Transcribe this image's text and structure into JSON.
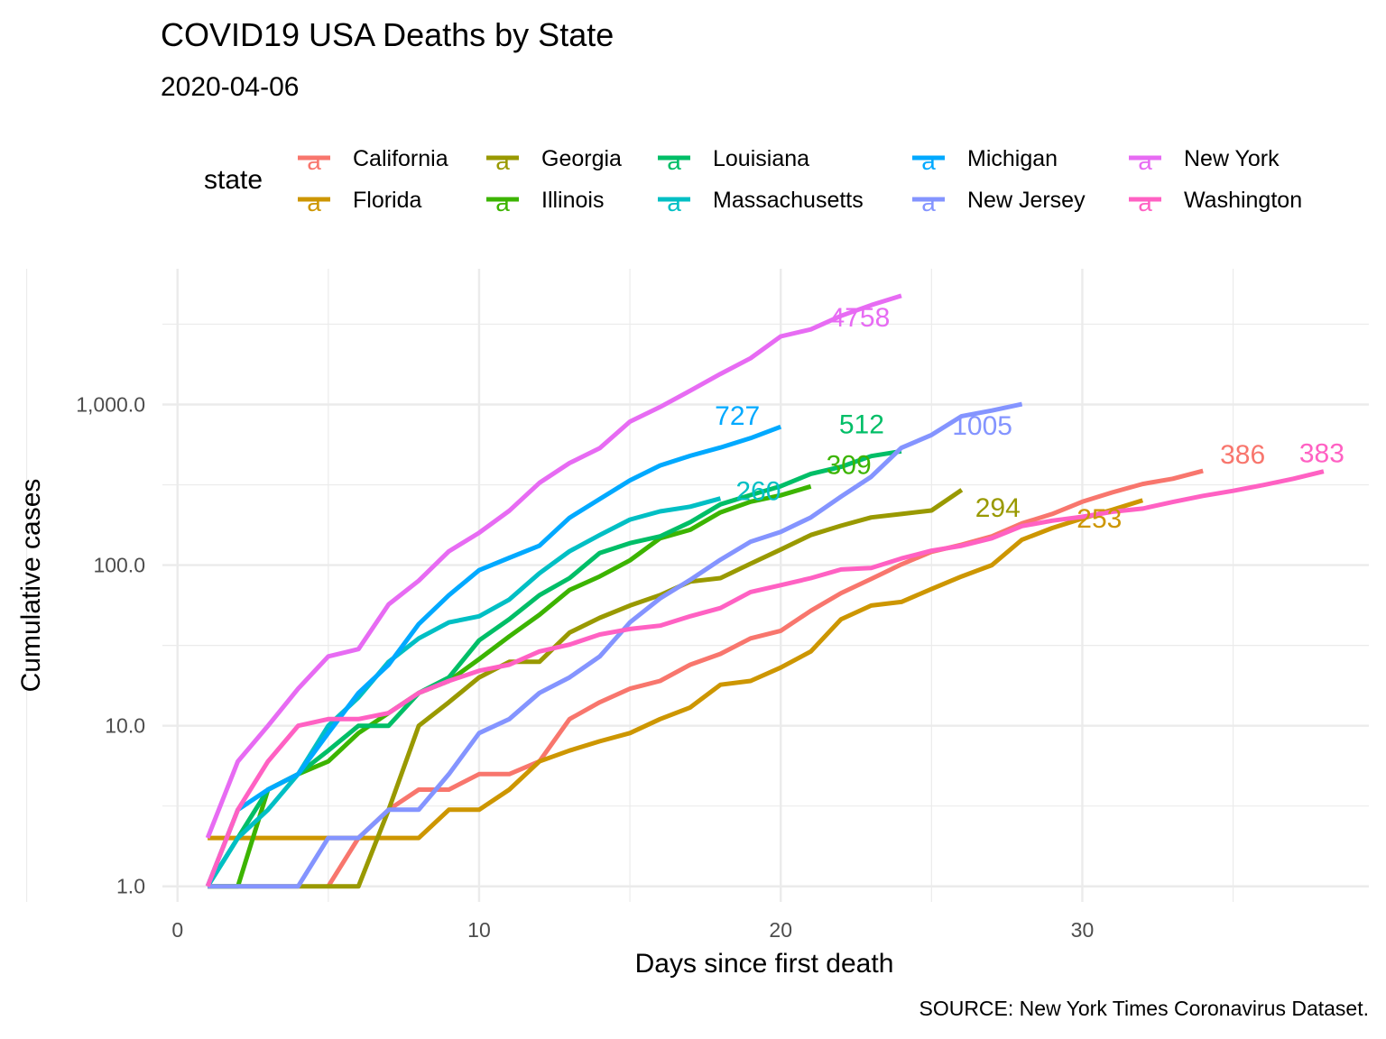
{
  "chart_data": {
    "type": "line",
    "title": "COVID19 USA Deaths by State",
    "subtitle": "2020-04-06",
    "xlabel": "Days since first death",
    "ylabel": "Cumulative cases",
    "caption": "SOURCE: New York Times Coronavirus Dataset.",
    "legend_title": "state",
    "legend_position": "top",
    "y_scale": "log10",
    "xlim": [
      -0.5,
      39.5
    ],
    "ylim": [
      0.8,
      7000
    ],
    "x_ticks": [
      0,
      10,
      20,
      30
    ],
    "x_tick_labels": [
      "0",
      "10",
      "20",
      "30"
    ],
    "y_ticks": [
      1,
      10,
      100,
      1000
    ],
    "y_tick_labels": [
      "1.0",
      "10.0",
      "100.0",
      "1,000.0"
    ],
    "grid": true,
    "series": [
      {
        "name": "California",
        "color": "#F8766D",
        "end_label": "386",
        "x": [
          5,
          6,
          7,
          8,
          9,
          10,
          11,
          12,
          13,
          14,
          15,
          16,
          17,
          18,
          19,
          20,
          21,
          22,
          23,
          24,
          25,
          26,
          27,
          28,
          29,
          30,
          31,
          32,
          33,
          34
        ],
        "y": [
          1,
          2,
          3,
          4,
          4,
          5,
          5,
          6,
          11,
          14,
          17,
          19,
          24,
          28,
          35,
          39,
          52,
          67,
          82,
          101,
          121,
          134,
          151,
          182,
          208,
          248,
          284,
          320,
          345,
          386
        ]
      },
      {
        "name": "Florida",
        "color": "#CD9600",
        "end_label": "253",
        "x": [
          1,
          2,
          3,
          4,
          5,
          6,
          7,
          8,
          9,
          10,
          11,
          12,
          13,
          14,
          15,
          16,
          17,
          18,
          19,
          20,
          21,
          22,
          23,
          24,
          25,
          26,
          27,
          28,
          29,
          30,
          31,
          32
        ],
        "y": [
          2,
          2,
          2,
          2,
          2,
          2,
          2,
          2,
          3,
          3,
          4,
          6,
          7,
          8,
          9,
          11,
          13,
          18,
          19,
          23,
          29,
          46,
          56,
          59,
          71,
          85,
          100,
          144,
          170,
          195,
          221,
          253
        ]
      },
      {
        "name": "Georgia",
        "color": "#999900",
        "end_label": "294",
        "x": [
          1,
          2,
          3,
          4,
          5,
          6,
          7,
          8,
          9,
          10,
          11,
          12,
          13,
          14,
          15,
          16,
          17,
          18,
          19,
          20,
          21,
          22,
          23,
          24,
          25,
          26
        ],
        "y": [
          1,
          1,
          1,
          1,
          1,
          1,
          3,
          10,
          14,
          20,
          25,
          25,
          38,
          47,
          56,
          65,
          79,
          83,
          102,
          125,
          154,
          176,
          198,
          208,
          219,
          294
        ]
      },
      {
        "name": "Illinois",
        "color": "#3CB400",
        "end_label": "309",
        "x": [
          1,
          2,
          3,
          4,
          5,
          6,
          7,
          8,
          9,
          10,
          11,
          12,
          13,
          14,
          15,
          16,
          17,
          18,
          19,
          20,
          21
        ],
        "y": [
          1,
          1,
          4,
          5,
          6,
          9,
          12,
          16,
          19,
          26,
          36,
          49,
          70,
          85,
          107,
          147,
          166,
          213,
          248,
          272,
          309
        ]
      },
      {
        "name": "Louisiana",
        "color": "#00BE67",
        "end_label": "512",
        "x": [
          1,
          2,
          3,
          4,
          5,
          6,
          7,
          8,
          9,
          10,
          11,
          12,
          13,
          14,
          15,
          16,
          17,
          18,
          19,
          20,
          21,
          22,
          23,
          24
        ],
        "y": [
          1,
          2,
          4,
          5,
          7,
          10,
          10,
          16,
          20,
          34,
          46,
          65,
          83,
          119,
          137,
          151,
          185,
          239,
          273,
          310,
          370,
          409,
          477,
          512
        ]
      },
      {
        "name": "Massachusetts",
        "color": "#00BFC4",
        "end_label": "260",
        "x": [
          1,
          2,
          3,
          4,
          5,
          6,
          7,
          8,
          9,
          10,
          11,
          12,
          13,
          14,
          15,
          16,
          17,
          18
        ],
        "y": [
          1,
          2,
          3,
          5,
          10,
          15,
          25,
          35,
          44,
          48,
          61,
          89,
          122,
          154,
          192,
          216,
          231,
          260
        ]
      },
      {
        "name": "Michigan",
        "color": "#00A9FF",
        "end_label": "727",
        "x": [
          1,
          2,
          3,
          4,
          5,
          6,
          7,
          8,
          9,
          10,
          11,
          12,
          13,
          14,
          15,
          16,
          17,
          18,
          19,
          20
        ],
        "y": [
          1,
          3,
          4,
          5,
          9,
          16,
          24,
          43,
          65,
          93,
          111,
          132,
          197,
          258,
          337,
          417,
          479,
          540,
          617,
          727
        ]
      },
      {
        "name": "New Jersey",
        "color": "#8494FF",
        "end_label": "1005",
        "x": [
          1,
          2,
          3,
          4,
          5,
          6,
          7,
          8,
          9,
          10,
          11,
          12,
          13,
          14,
          15,
          16,
          17,
          18,
          19,
          20,
          21,
          22,
          23,
          24,
          25,
          26,
          27,
          28
        ],
        "y": [
          1,
          1,
          1,
          1,
          2,
          2,
          3,
          3,
          5,
          9,
          11,
          16,
          20,
          27,
          44,
          62,
          81,
          108,
          140,
          161,
          198,
          267,
          355,
          537,
          646,
          846,
          917,
          1005
        ]
      },
      {
        "name": "New York",
        "color": "#E76BF3",
        "end_label": "4758",
        "x": [
          1,
          2,
          3,
          4,
          5,
          6,
          7,
          8,
          9,
          10,
          11,
          12,
          13,
          14,
          15,
          16,
          17,
          18,
          19,
          20,
          21,
          22,
          23,
          24
        ],
        "y": [
          2,
          6,
          10,
          17,
          27,
          30,
          57,
          80,
          122,
          159,
          218,
          325,
          432,
          535,
          782,
          965,
          1218,
          1550,
          1941,
          2653,
          2935,
          3565,
          4159,
          4758
        ]
      },
      {
        "name": "Washington",
        "color": "#FF61C3",
        "end_label": "383",
        "x": [
          1,
          2,
          3,
          4,
          5,
          6,
          7,
          8,
          9,
          10,
          11,
          12,
          13,
          14,
          15,
          16,
          17,
          18,
          19,
          20,
          21,
          22,
          23,
          24,
          25,
          26,
          27,
          28,
          29,
          30,
          31,
          32,
          33,
          34,
          35,
          36,
          37,
          38
        ],
        "y": [
          1,
          3,
          6,
          10,
          11,
          11,
          12,
          16,
          19,
          22,
          24,
          29,
          32,
          37,
          40,
          42,
          48,
          54,
          68,
          75,
          83,
          94,
          96,
          110,
          123,
          132,
          147,
          175,
          189,
          200,
          215,
          225,
          247,
          270,
          290,
          315,
          345,
          383
        ]
      }
    ]
  }
}
